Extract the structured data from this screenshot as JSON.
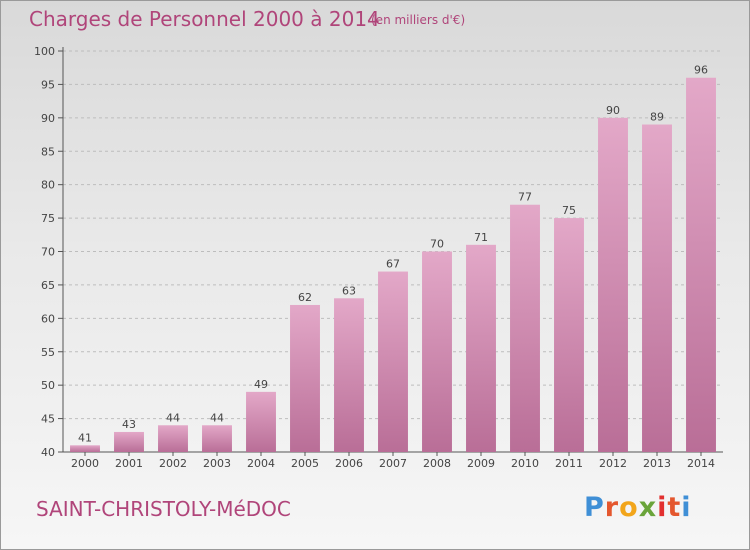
{
  "header": {
    "title": "Charges de Personnel 2000 à 2014",
    "unit": "(en milliers d'€)"
  },
  "footer": {
    "commune": "SAINT-CHRISTOLY-MéDOC",
    "logo_parts": [
      "P",
      "r",
      "o",
      "x",
      "i",
      "t",
      "i"
    ]
  },
  "colors": {
    "bar_top": "#e3a8c8",
    "bar_bottom": "#b96e97",
    "title": "#b0457a"
  },
  "chart_data": {
    "type": "bar",
    "title": "Charges de Personnel 2000 à 2014",
    "subtitle": "(en milliers d'€)",
    "xlabel": "",
    "ylabel": "",
    "categories": [
      "2000",
      "2001",
      "2002",
      "2003",
      "2004",
      "2005",
      "2006",
      "2007",
      "2008",
      "2009",
      "2010",
      "2011",
      "2012",
      "2013",
      "2014"
    ],
    "values": [
      41,
      43,
      44,
      44,
      49,
      62,
      63,
      67,
      70,
      71,
      77,
      75,
      90,
      89,
      96
    ],
    "ylim": [
      40,
      100
    ],
    "yticks": [
      40,
      45,
      50,
      55,
      60,
      65,
      70,
      75,
      80,
      85,
      90,
      95,
      100
    ],
    "grid": true,
    "legend": "none"
  }
}
